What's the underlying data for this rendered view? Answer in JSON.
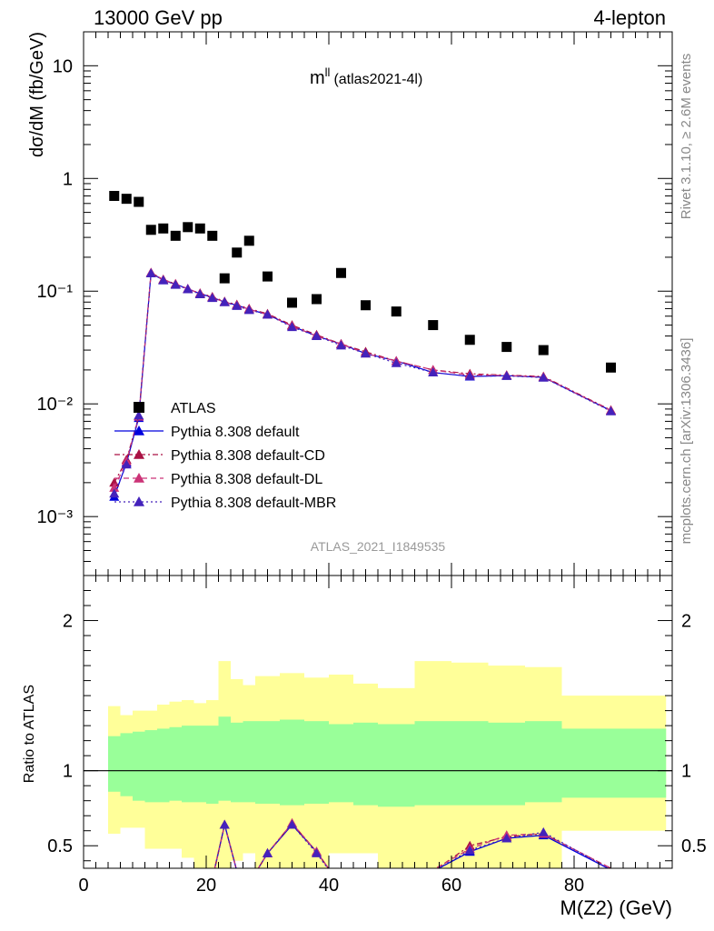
{
  "header": {
    "energy_label": "13000 GeV pp",
    "process_label": "4-lepton",
    "plot_title": "m",
    "plot_title_sup": "ll",
    "plot_title_sub": "(atlas2021-4l)",
    "analysis_id": "ATLAS_2021_I1849535",
    "rivet_label": "Rivet 3.1.10, ≥ 2.6M events",
    "mcplots_label": "mcplots.cern.ch [arXiv:1306.3436]"
  },
  "chart_data": [
    {
      "type": "scatter",
      "name": "main-panel",
      "ylabel": "dσ/dM (fb/GeV)",
      "xlabel": "",
      "xlim": [
        0,
        96
      ],
      "ylim": [
        0.0003,
        20
      ],
      "log_y": true,
      "y_tick_labels": [
        "10",
        "1",
        "10⁻¹",
        "10⁻²",
        "10⁻³"
      ],
      "legend_placement": "bottom-left",
      "series": [
        {
          "name": "ATLAS",
          "color": "#000000",
          "marker": "square",
          "points": [
            [
              5,
              0.7
            ],
            [
              7,
              0.66
            ],
            [
              9,
              0.62
            ],
            [
              11,
              0.35
            ],
            [
              13,
              0.36
            ],
            [
              15,
              0.31
            ],
            [
              17,
              0.37
            ],
            [
              19,
              0.36
            ],
            [
              21,
              0.31
            ],
            [
              23,
              0.13
            ],
            [
              25,
              0.22
            ],
            [
              27,
              0.28
            ],
            [
              30,
              0.135
            ],
            [
              34,
              0.079
            ],
            [
              38,
              0.085
            ],
            [
              42,
              0.145
            ],
            [
              46,
              0.075
            ],
            [
              51,
              0.066
            ],
            [
              57,
              0.05
            ],
            [
              63,
              0.037
            ],
            [
              69,
              0.032
            ],
            [
              75,
              0.03
            ],
            [
              86,
              0.021
            ]
          ]
        },
        {
          "name": "Pythia 8.308 default",
          "color": "#0000dd",
          "marker": "triangle",
          "line": "solid",
          "points": [
            [
              5,
              0.0015
            ],
            [
              7,
              0.003
            ],
            [
              9,
              0.0075
            ],
            [
              11,
              0.145
            ],
            [
              13,
              0.125
            ],
            [
              15,
              0.115
            ],
            [
              17,
              0.105
            ],
            [
              19,
              0.095
            ],
            [
              21,
              0.088
            ],
            [
              23,
              0.08
            ],
            [
              25,
              0.075
            ],
            [
              27,
              0.069
            ],
            [
              30,
              0.062
            ],
            [
              34,
              0.049
            ],
            [
              38,
              0.04
            ],
            [
              42,
              0.034
            ],
            [
              46,
              0.028
            ],
            [
              51,
              0.024
            ],
            [
              57,
              0.019
            ],
            [
              63,
              0.0175
            ],
            [
              69,
              0.0178
            ],
            [
              75,
              0.0172
            ],
            [
              86,
              0.0087
            ]
          ]
        },
        {
          "name": "Pythia 8.308 default-CD",
          "color": "#aa1144",
          "marker": "triangle",
          "line": "dashdot",
          "points": [
            [
              5,
              0.002
            ],
            [
              7,
              0.0032
            ],
            [
              9,
              0.0078
            ],
            [
              11,
              0.146
            ],
            [
              13,
              0.127
            ],
            [
              15,
              0.116
            ],
            [
              17,
              0.104
            ],
            [
              19,
              0.096
            ],
            [
              21,
              0.089
            ],
            [
              23,
              0.081
            ],
            [
              25,
              0.076
            ],
            [
              27,
              0.07
            ],
            [
              30,
              0.063
            ],
            [
              34,
              0.05
            ],
            [
              38,
              0.041
            ],
            [
              42,
              0.034
            ],
            [
              46,
              0.029
            ],
            [
              51,
              0.024
            ],
            [
              57,
              0.02
            ],
            [
              63,
              0.0185
            ],
            [
              69,
              0.018
            ],
            [
              75,
              0.0175
            ],
            [
              86,
              0.0088
            ]
          ]
        },
        {
          "name": "Pythia 8.308 default-DL",
          "color": "#cc3377",
          "marker": "triangle",
          "line": "dashed",
          "points": [
            [
              5,
              0.0018
            ],
            [
              7,
              0.0031
            ],
            [
              9,
              0.0077
            ],
            [
              11,
              0.146
            ],
            [
              13,
              0.126
            ],
            [
              15,
              0.116
            ],
            [
              17,
              0.105
            ],
            [
              19,
              0.095
            ],
            [
              21,
              0.088
            ],
            [
              23,
              0.08
            ],
            [
              25,
              0.075
            ],
            [
              27,
              0.069
            ],
            [
              30,
              0.062
            ],
            [
              34,
              0.049
            ],
            [
              38,
              0.04
            ],
            [
              42,
              0.034
            ],
            [
              46,
              0.028
            ],
            [
              51,
              0.024
            ],
            [
              57,
              0.02
            ],
            [
              63,
              0.018
            ],
            [
              69,
              0.0179
            ],
            [
              75,
              0.0173
            ],
            [
              86,
              0.0087
            ]
          ]
        },
        {
          "name": "Pythia 8.308 default-MBR",
          "color": "#4422bb",
          "marker": "triangle",
          "line": "dotted",
          "points": [
            [
              5,
              0.0016
            ],
            [
              7,
              0.0029
            ],
            [
              9,
              0.0079
            ],
            [
              11,
              0.144
            ],
            [
              13,
              0.125
            ],
            [
              15,
              0.114
            ],
            [
              17,
              0.104
            ],
            [
              19,
              0.094
            ],
            [
              21,
              0.087
            ],
            [
              23,
              0.08
            ],
            [
              25,
              0.074
            ],
            [
              27,
              0.068
            ],
            [
              30,
              0.062
            ],
            [
              34,
              0.048
            ],
            [
              38,
              0.04
            ],
            [
              42,
              0.033
            ],
            [
              46,
              0.028
            ],
            [
              51,
              0.023
            ],
            [
              57,
              0.019
            ],
            [
              63,
              0.0176
            ],
            [
              69,
              0.0177
            ],
            [
              75,
              0.0171
            ],
            [
              86,
              0.0086
            ]
          ]
        }
      ]
    },
    {
      "type": "line",
      "name": "ratio-panel",
      "ylabel": "Ratio to ATLAS",
      "xlabel": "M(Z2) (GeV)",
      "xlim": [
        0,
        96
      ],
      "ylim": [
        0.35,
        2.3
      ],
      "x_ticks": [
        0,
        20,
        40,
        60,
        80
      ],
      "y_ticks": [
        0.5,
        1,
        2
      ],
      "reference_line": 1,
      "bands": {
        "bins": [
          [
            4,
            6
          ],
          [
            6,
            8
          ],
          [
            8,
            10
          ],
          [
            10,
            12
          ],
          [
            12,
            14
          ],
          [
            14,
            16
          ],
          [
            16,
            18
          ],
          [
            18,
            20
          ],
          [
            20,
            22
          ],
          [
            22,
            24
          ],
          [
            24,
            26
          ],
          [
            26,
            28
          ],
          [
            28,
            32
          ],
          [
            32,
            36
          ],
          [
            36,
            40
          ],
          [
            40,
            44
          ],
          [
            44,
            48
          ],
          [
            48,
            54
          ],
          [
            54,
            60
          ],
          [
            60,
            66
          ],
          [
            66,
            72
          ],
          [
            72,
            78
          ],
          [
            78,
            95
          ]
        ],
        "yellow_low": [
          0.58,
          0.62,
          0.62,
          0.48,
          0.48,
          0.48,
          0.42,
          0.35,
          0.3,
          0.25,
          0.4,
          0.45,
          0.3,
          0.3,
          0.3,
          0.45,
          0.45,
          0.3,
          0.3,
          0.3,
          0.3,
          0.3,
          0.6
        ],
        "yellow_high": [
          1.43,
          1.37,
          1.4,
          1.4,
          1.44,
          1.46,
          1.47,
          1.45,
          1.47,
          1.73,
          1.61,
          1.57,
          1.63,
          1.65,
          1.62,
          1.64,
          1.58,
          1.55,
          1.73,
          1.72,
          1.7,
          1.69,
          1.5
        ],
        "green_low": [
          0.86,
          0.83,
          0.8,
          0.79,
          0.79,
          0.8,
          0.79,
          0.79,
          0.78,
          0.8,
          0.79,
          0.79,
          0.78,
          0.77,
          0.78,
          0.79,
          0.77,
          0.76,
          0.77,
          0.77,
          0.77,
          0.79,
          0.82
        ],
        "green_high": [
          1.23,
          1.25,
          1.26,
          1.27,
          1.28,
          1.29,
          1.3,
          1.3,
          1.3,
          1.36,
          1.32,
          1.33,
          1.33,
          1.34,
          1.33,
          1.31,
          1.32,
          1.31,
          1.33,
          1.33,
          1.32,
          1.33,
          1.28
        ]
      },
      "series": [
        {
          "name": "Pythia 8.308 default",
          "color": "#0000dd",
          "line": "solid",
          "points": [
            [
              11,
              0.35
            ],
            [
              13,
              0.3
            ],
            [
              21,
              0.28
            ],
            [
              23,
              0.64
            ],
            [
              25,
              0.33
            ],
            [
              27,
              0.25
            ],
            [
              30,
              0.45
            ],
            [
              34,
              0.64
            ],
            [
              38,
              0.46
            ],
            [
              42,
              0.23
            ],
            [
              46,
              0.25
            ],
            [
              57,
              0.33
            ],
            [
              63,
              0.46
            ],
            [
              69,
              0.55
            ],
            [
              75,
              0.57
            ],
            [
              86,
              0.34
            ]
          ]
        },
        {
          "name": "Pythia 8.308 default-CD",
          "color": "#aa1144",
          "line": "dashdot",
          "points": [
            [
              11,
              0.35
            ],
            [
              13,
              0.3
            ],
            [
              21,
              0.28
            ],
            [
              23,
              0.64
            ],
            [
              25,
              0.33
            ],
            [
              27,
              0.25
            ],
            [
              30,
              0.45
            ],
            [
              34,
              0.65
            ],
            [
              38,
              0.46
            ],
            [
              42,
              0.23
            ],
            [
              46,
              0.25
            ],
            [
              57,
              0.33
            ],
            [
              63,
              0.5
            ],
            [
              69,
              0.56
            ],
            [
              75,
              0.58
            ],
            [
              86,
              0.35
            ]
          ]
        },
        {
          "name": "Pythia 8.308 default-DL",
          "color": "#cc3377",
          "line": "dashed",
          "points": [
            [
              11,
              0.35
            ],
            [
              13,
              0.3
            ],
            [
              21,
              0.28
            ],
            [
              23,
              0.64
            ],
            [
              25,
              0.33
            ],
            [
              27,
              0.25
            ],
            [
              30,
              0.45
            ],
            [
              34,
              0.65
            ],
            [
              38,
              0.46
            ],
            [
              42,
              0.23
            ],
            [
              46,
              0.25
            ],
            [
              57,
              0.34
            ],
            [
              63,
              0.48
            ],
            [
              69,
              0.57
            ],
            [
              75,
              0.58
            ],
            [
              86,
              0.35
            ]
          ]
        },
        {
          "name": "Pythia 8.308 default-MBR",
          "color": "#4422bb",
          "line": "dotted",
          "points": [
            [
              11,
              0.35
            ],
            [
              13,
              0.3
            ],
            [
              21,
              0.28
            ],
            [
              23,
              0.64
            ],
            [
              25,
              0.33
            ],
            [
              27,
              0.25
            ],
            [
              30,
              0.45
            ],
            [
              34,
              0.64
            ],
            [
              38,
              0.45
            ],
            [
              42,
              0.23
            ],
            [
              46,
              0.25
            ],
            [
              57,
              0.33
            ],
            [
              63,
              0.47
            ],
            [
              69,
              0.55
            ],
            [
              75,
              0.59
            ],
            [
              86,
              0.34
            ]
          ]
        }
      ]
    }
  ]
}
